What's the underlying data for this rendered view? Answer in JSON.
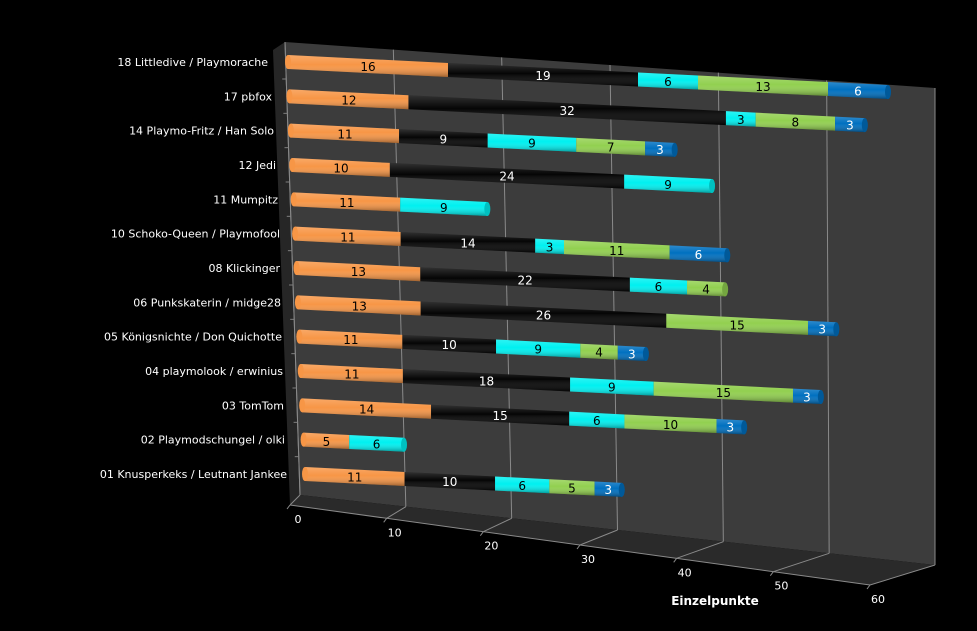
{
  "chart_data": {
    "type": "bar",
    "orientation": "horizontal-stacked-3d",
    "title": "",
    "xlabel": "Einzelpunkte",
    "ylabel": "",
    "xlim": [
      0,
      60
    ],
    "xticks": [
      "0",
      "10",
      "20",
      "30",
      "40",
      "50",
      "60"
    ],
    "grid": true,
    "legend": "none",
    "categories": [
      "18 Littledive / Playmorache",
      "17 pbfox",
      "14 Playmo-Fritz / Han Solo",
      "12 Jedi",
      "11 Mumpitz",
      "10 Schoko-Queen / Playmofool",
      "08 Klickinger",
      "06 Punkskaterin / midge28",
      "05 Königsnichte / Don Quichotte",
      "04 playmolook / erwinius",
      "03 TomTom",
      "02 Playmodschungel / olki",
      "01 Knusperkeks / Leutnant Jankee"
    ],
    "series": [
      {
        "name": "Orange",
        "color": "#F79646",
        "label_color": "#000000",
        "values": [
          16,
          12,
          11,
          10,
          11,
          11,
          13,
          13,
          11,
          11,
          14,
          5,
          11
        ]
      },
      {
        "name": "Black",
        "color": "#050505",
        "label_color": "#ffffff",
        "values": [
          19,
          32,
          9,
          24,
          0,
          14,
          22,
          26,
          10,
          18,
          15,
          0,
          10
        ]
      },
      {
        "name": "Cyan",
        "color": "#00F0F0",
        "label_color": "#000000",
        "values": [
          6,
          3,
          9,
          9,
          9,
          3,
          6,
          0,
          9,
          9,
          6,
          6,
          6
        ]
      },
      {
        "name": "Green",
        "color": "#92D050",
        "label_color": "#000000",
        "values": [
          13,
          8,
          7,
          0,
          0,
          11,
          4,
          15,
          4,
          15,
          10,
          0,
          5
        ]
      },
      {
        "name": "Blue",
        "color": "#0070C0",
        "label_color": "#ffffff",
        "values": [
          6,
          3,
          3,
          0,
          0,
          6,
          0,
          3,
          3,
          3,
          3,
          0,
          3
        ]
      }
    ]
  }
}
